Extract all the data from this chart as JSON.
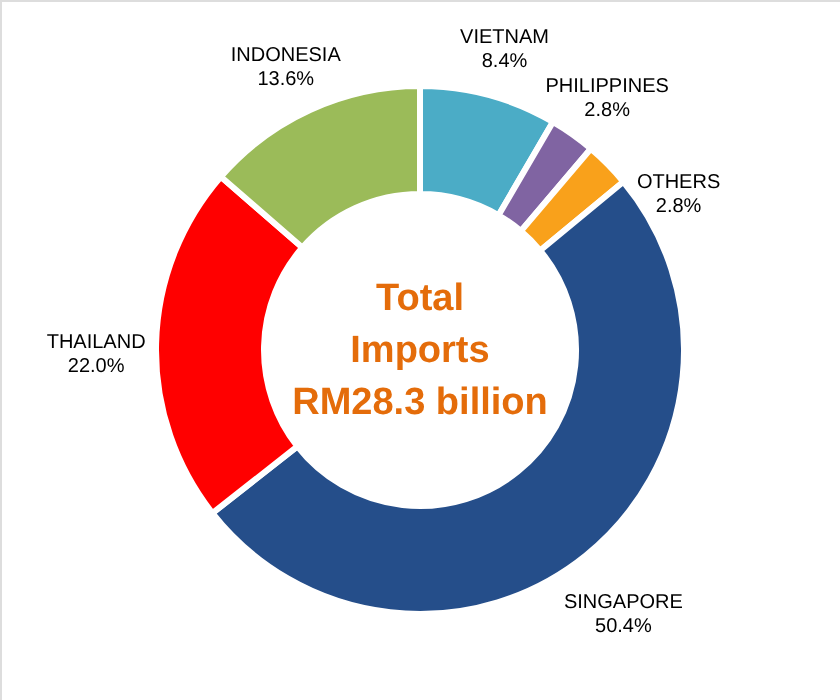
{
  "chart_data": {
    "type": "donut",
    "title": "Total\nImports\nRM28.3 billion",
    "categories": [
      "VIETNAM",
      "PHILIPPINES",
      "OTHERS",
      "SINGAPORE",
      "THAILAND",
      "INDONESIA"
    ],
    "values": [
      8.4,
      2.8,
      2.8,
      50.4,
      22.0,
      13.6
    ],
    "value_labels": [
      "8.4%",
      "2.8%",
      "2.8%",
      "50.4%",
      "22.0%",
      "13.6%"
    ],
    "colors": [
      "#4bacc6",
      "#8064a2",
      "#f9a11b",
      "#254e8a",
      "#ff0000",
      "#9bbb59"
    ]
  }
}
